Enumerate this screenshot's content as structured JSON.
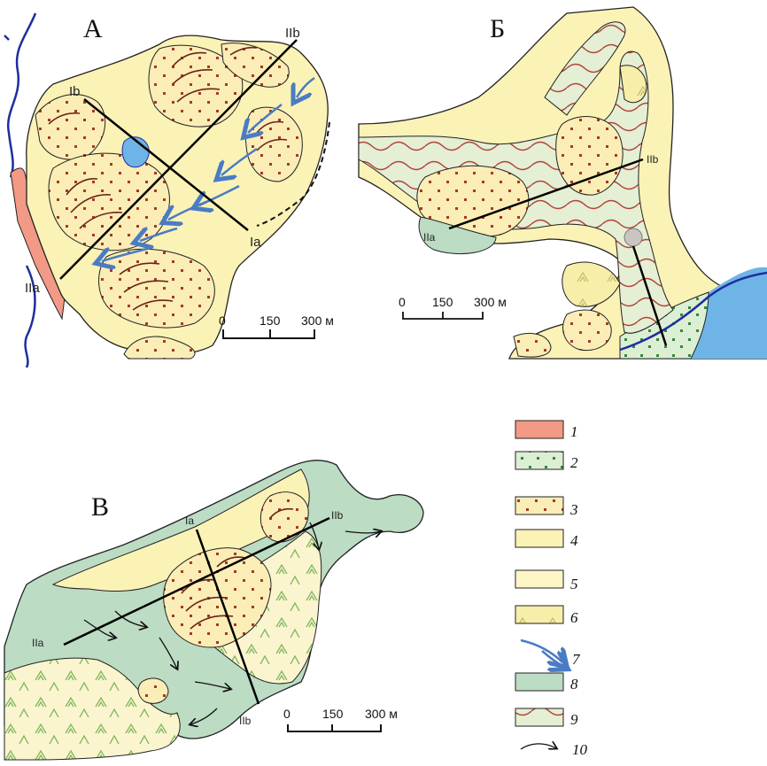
{
  "panels": [
    {
      "letter": "А",
      "sections": [
        "Ib",
        "IIb",
        "Ia",
        "IIa"
      ],
      "scale": [
        "0",
        "150",
        "300 м"
      ]
    },
    {
      "letter": "Б",
      "sections": [
        "IIb",
        "IIa"
      ],
      "scale": [
        "0",
        "150",
        "300 м"
      ]
    },
    {
      "letter": "В",
      "sections": [
        "Ia",
        "IIb",
        "IIa",
        "IIb"
      ],
      "scale": [
        "0",
        "150",
        "300 м"
      ]
    }
  ],
  "legend": [
    {
      "num": "1",
      "fill": "#f29a86",
      "pattern": "none"
    },
    {
      "num": "2",
      "fill": "#dcefd4",
      "pattern": "green-dots"
    },
    {
      "num": "3",
      "fill": "#fbedb6",
      "pattern": "brown-dots"
    },
    {
      "num": "4",
      "fill": "#fbf2b6",
      "pattern": "none"
    },
    {
      "num": "5",
      "fill": "#fdf7c8",
      "pattern": "none"
    },
    {
      "num": "6",
      "fill": "#f7eeaa",
      "pattern": "green-chevrons"
    },
    {
      "num": "7",
      "symbol": "blue-arrows",
      "color": "#4a7cc4"
    },
    {
      "num": "8",
      "fill": "#bcdcc4",
      "pattern": "none"
    },
    {
      "num": "9",
      "fill": "#e4efd4",
      "pattern": "red-waves"
    },
    {
      "num": "10",
      "symbol": "black-arrow",
      "color": "#111111"
    }
  ],
  "colors": {
    "river": "#1f2e9c",
    "water": "#6fb4e6",
    "ice_arrow": "#4a7cc4",
    "dots": "#a33a26",
    "ridge": "#6a2418",
    "section_line": "#000000"
  }
}
